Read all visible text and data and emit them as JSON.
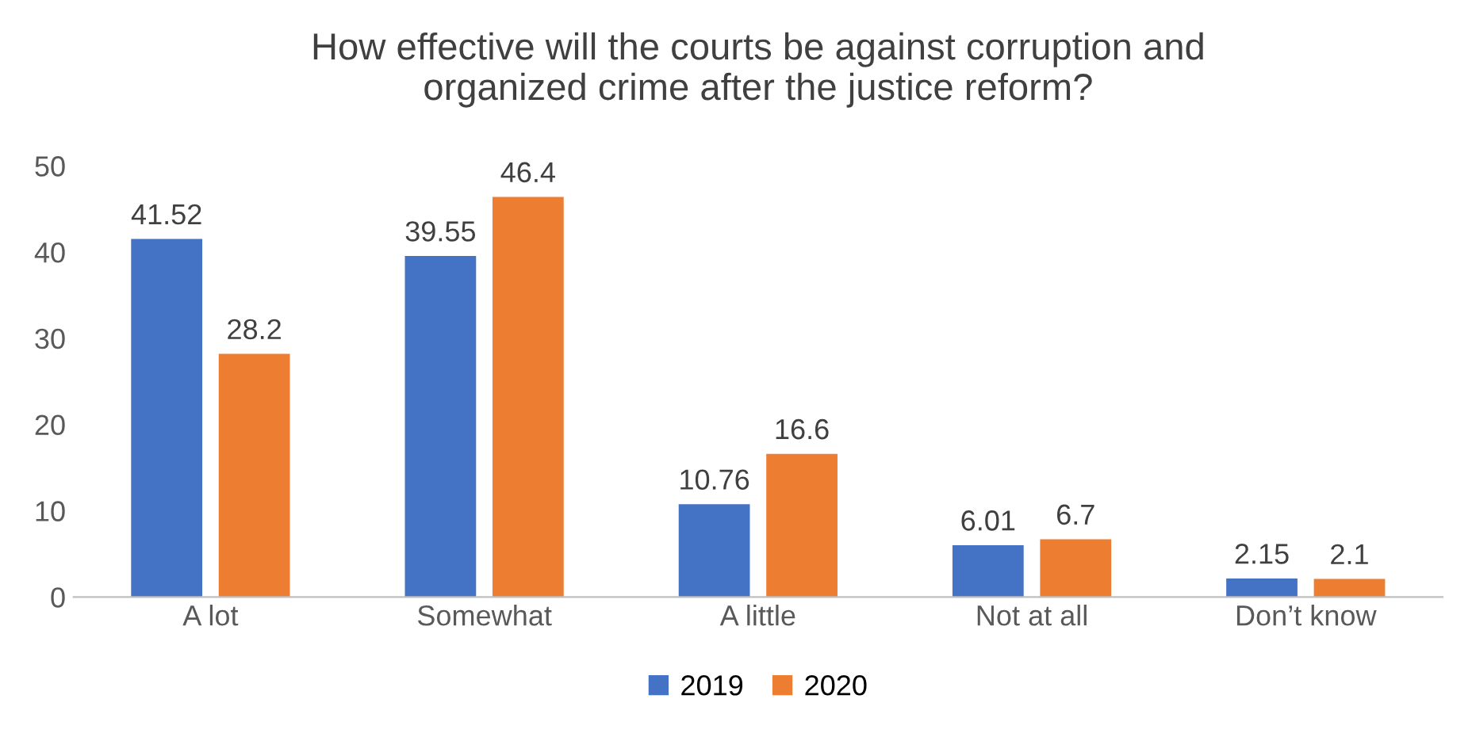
{
  "chart_data": {
    "type": "bar",
    "title": "How effective will the courts be against corruption and\norganized crime after the justice reform?",
    "categories": [
      "A lot",
      "Somewhat",
      "A little",
      "Not at all",
      "Don’t know"
    ],
    "series": [
      {
        "name": "2019",
        "color": "#4472c4",
        "values": [
          41.52,
          39.55,
          10.76,
          6.01,
          2.15
        ]
      },
      {
        "name": "2020",
        "color": "#ed7d31",
        "values": [
          28.2,
          46.4,
          16.6,
          6.7,
          2.1
        ]
      }
    ],
    "ylim": [
      0,
      50
    ],
    "yticks": [
      0,
      10,
      20,
      30,
      40,
      50
    ],
    "grid": false,
    "legend": "bottom",
    "data_labels": true
  }
}
